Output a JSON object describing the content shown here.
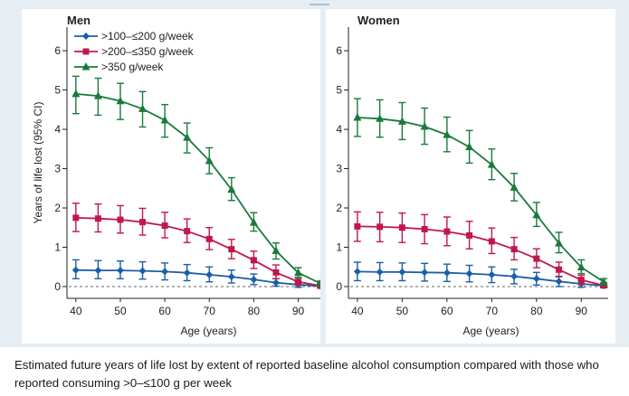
{
  "caption": "Estimated future years of life lost by extent of reported baseline alcohol consumption compared with those who reported consuming >0–≤100 g per week",
  "chart_data": [
    {
      "type": "line",
      "title": "Men",
      "xlabel": "Age (years)",
      "ylabel": "Years of life lost (95% CI)",
      "xlim": [
        38,
        96
      ],
      "ylim": [
        -0.3,
        6.6
      ],
      "xticks": [
        40,
        50,
        60,
        70,
        80,
        90
      ],
      "yticks": [
        0,
        1,
        2,
        3,
        4,
        5,
        6
      ],
      "reference_line_y": 0,
      "legend_position": "top-left",
      "x": [
        40,
        45,
        50,
        55,
        60,
        65,
        70,
        75,
        80,
        85,
        90,
        95
      ],
      "series": [
        {
          "name": ">100–≤200 g/week",
          "color": "#1a5ea8",
          "marker": "diamond",
          "values": [
            0.42,
            0.41,
            0.41,
            0.4,
            0.38,
            0.35,
            0.3,
            0.25,
            0.18,
            0.1,
            0.05,
            0.01
          ],
          "lower": [
            0.2,
            0.2,
            0.2,
            0.19,
            0.17,
            0.15,
            0.12,
            0.09,
            0.05,
            0.01,
            -0.02,
            -0.03
          ],
          "upper": [
            0.68,
            0.66,
            0.65,
            0.63,
            0.6,
            0.56,
            0.5,
            0.42,
            0.32,
            0.2,
            0.12,
            0.05
          ]
        },
        {
          "name": ">200–≤350 g/week",
          "color": "#c0184a",
          "marker": "square",
          "values": [
            1.75,
            1.73,
            1.7,
            1.64,
            1.55,
            1.41,
            1.21,
            0.95,
            0.67,
            0.36,
            0.12,
            0.02
          ],
          "lower": [
            1.4,
            1.39,
            1.36,
            1.31,
            1.24,
            1.12,
            0.94,
            0.71,
            0.46,
            0.2,
            0.03,
            -0.03
          ],
          "upper": [
            2.12,
            2.1,
            2.06,
            1.99,
            1.89,
            1.72,
            1.5,
            1.2,
            0.9,
            0.55,
            0.23,
            0.07
          ]
        },
        {
          "name": ">350 g/week",
          "color": "#1a7a3c",
          "marker": "triangle",
          "values": [
            4.9,
            4.85,
            4.72,
            4.52,
            4.23,
            3.79,
            3.2,
            2.47,
            1.63,
            0.91,
            0.35,
            0.08
          ],
          "lower": [
            4.4,
            4.36,
            4.25,
            4.06,
            3.8,
            3.4,
            2.87,
            2.19,
            1.41,
            0.7,
            0.22,
            0.02
          ],
          "upper": [
            5.35,
            5.3,
            5.17,
            4.96,
            4.63,
            4.16,
            3.53,
            2.77,
            1.88,
            1.11,
            0.48,
            0.14
          ]
        }
      ]
    },
    {
      "type": "line",
      "title": "Women",
      "xlabel": "Age (years)",
      "ylabel": "",
      "xlim": [
        38,
        96
      ],
      "ylim": [
        -0.3,
        6.6
      ],
      "xticks": [
        40,
        50,
        60,
        70,
        80,
        90
      ],
      "yticks": [
        0,
        1,
        2,
        3,
        4,
        5,
        6
      ],
      "reference_line_y": 0,
      "x": [
        40,
        45,
        50,
        55,
        60,
        65,
        70,
        75,
        80,
        85,
        90,
        95
      ],
      "series": [
        {
          "name": ">100–≤200 g/week",
          "color": "#1a5ea8",
          "marker": "diamond",
          "values": [
            0.38,
            0.37,
            0.37,
            0.36,
            0.35,
            0.33,
            0.3,
            0.26,
            0.2,
            0.13,
            0.07,
            0.02
          ],
          "lower": [
            0.15,
            0.15,
            0.15,
            0.14,
            0.13,
            0.12,
            0.1,
            0.07,
            0.04,
            0.0,
            -0.02,
            -0.03
          ],
          "upper": [
            0.62,
            0.61,
            0.6,
            0.59,
            0.57,
            0.54,
            0.5,
            0.44,
            0.36,
            0.26,
            0.15,
            0.07
          ]
        },
        {
          "name": ">200–≤350 g/week",
          "color": "#c0184a",
          "marker": "square",
          "values": [
            1.53,
            1.52,
            1.5,
            1.46,
            1.4,
            1.3,
            1.15,
            0.95,
            0.71,
            0.43,
            0.17,
            0.03
          ],
          "lower": [
            1.15,
            1.14,
            1.12,
            1.09,
            1.04,
            0.96,
            0.84,
            0.68,
            0.48,
            0.25,
            0.05,
            -0.03
          ],
          "upper": [
            1.9,
            1.89,
            1.87,
            1.83,
            1.77,
            1.66,
            1.49,
            1.25,
            0.96,
            0.62,
            0.29,
            0.09
          ]
        },
        {
          "name": ">350 g/week",
          "color": "#1a7a3c",
          "marker": "triangle",
          "values": [
            4.3,
            4.27,
            4.2,
            4.07,
            3.86,
            3.55,
            3.1,
            2.52,
            1.82,
            1.1,
            0.49,
            0.12
          ],
          "lower": [
            3.82,
            3.8,
            3.74,
            3.62,
            3.43,
            3.14,
            2.72,
            2.18,
            1.53,
            0.86,
            0.33,
            0.04
          ],
          "upper": [
            4.78,
            4.75,
            4.68,
            4.54,
            4.31,
            3.97,
            3.5,
            2.88,
            2.14,
            1.38,
            0.68,
            0.2
          ]
        }
      ]
    }
  ]
}
